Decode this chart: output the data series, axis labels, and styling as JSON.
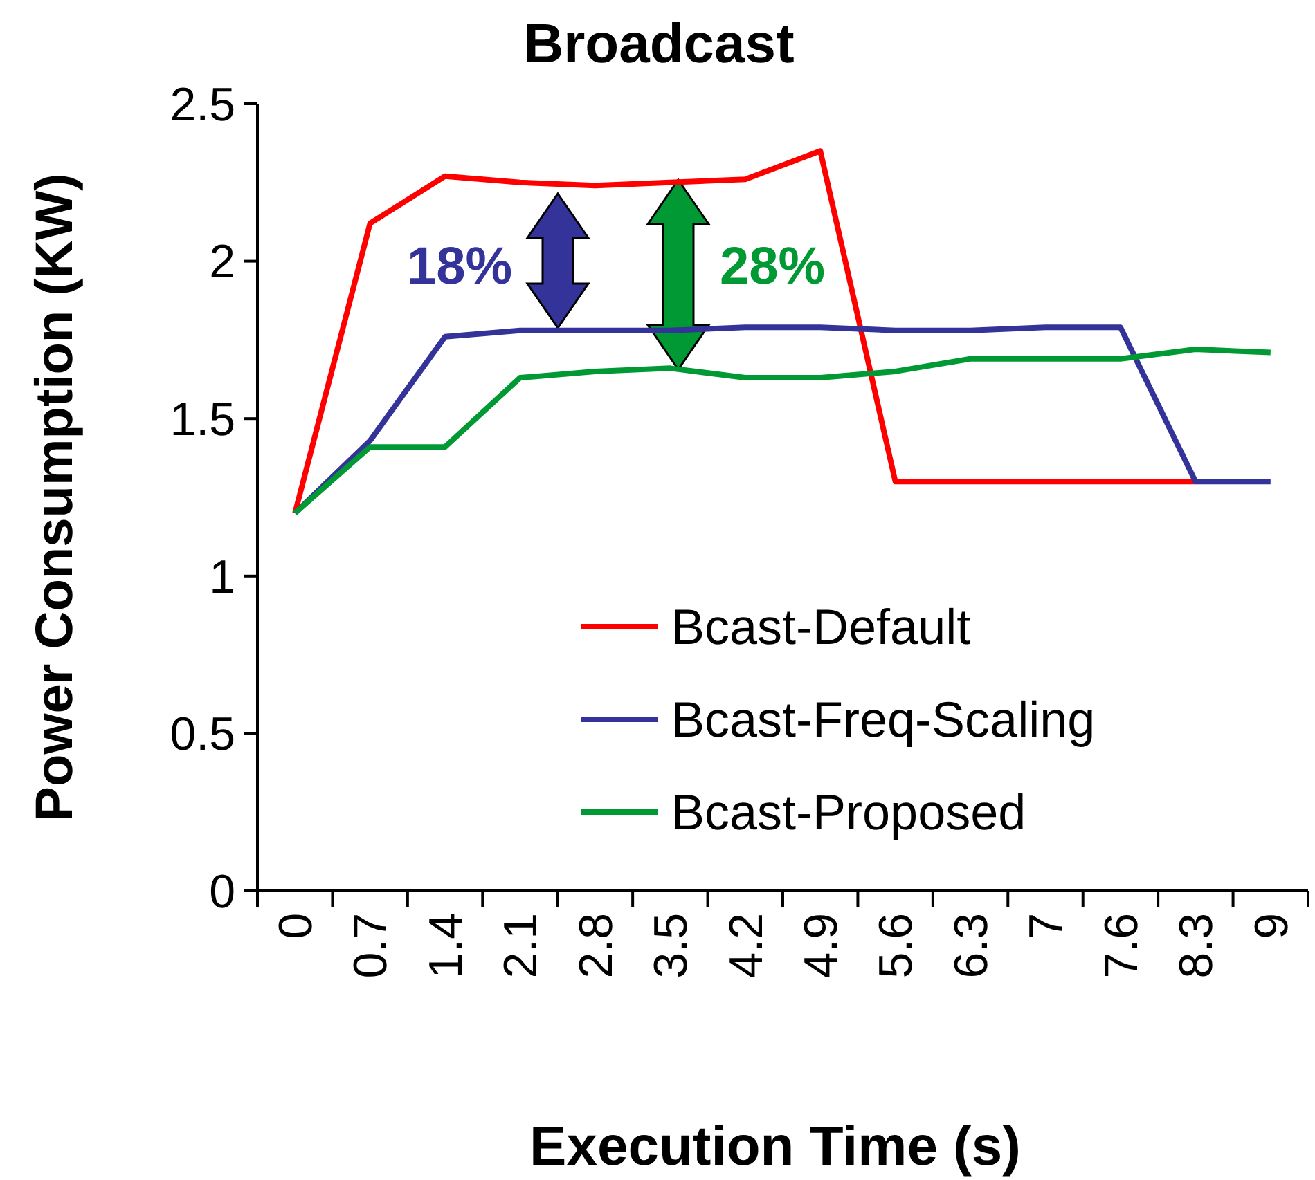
{
  "chart_data": {
    "type": "line",
    "title": "Broadcast",
    "xlabel": "Execution Time (s)",
    "ylabel": "Power Consumption (KW)",
    "categories": [
      "0",
      "0.7",
      "1.4",
      "2.1",
      "2.8",
      "3.5",
      "4.2",
      "4.9",
      "5.6",
      "6.3",
      "7",
      "7.6",
      "8.3",
      "9"
    ],
    "series": [
      {
        "name": "Bcast-Default",
        "color": "#ff0000",
        "values": [
          1.2,
          2.12,
          2.27,
          2.25,
          2.24,
          2.25,
          2.26,
          2.35,
          1.3,
          1.3,
          1.3,
          1.3,
          1.3,
          null
        ]
      },
      {
        "name": "Bcast-Freq-Scaling",
        "color": "#333399",
        "values": [
          1.2,
          1.43,
          1.76,
          1.78,
          1.78,
          1.78,
          1.79,
          1.79,
          1.78,
          1.78,
          1.79,
          1.79,
          1.3,
          1.3
        ]
      },
      {
        "name": "Bcast-Proposed",
        "color": "#009933",
        "values": [
          1.2,
          1.41,
          1.41,
          1.63,
          1.65,
          1.66,
          1.63,
          1.63,
          1.65,
          1.69,
          1.69,
          1.69,
          1.72,
          1.71
        ]
      }
    ],
    "ylim": [
      0,
      2.5
    ],
    "yticks": [
      0,
      0.5,
      1,
      1.5,
      2,
      2.5
    ],
    "grid": false,
    "legend": "bottom right",
    "marker": "none",
    "line_style": "solid",
    "annotations": [
      "18%",
      "28%"
    ]
  }
}
